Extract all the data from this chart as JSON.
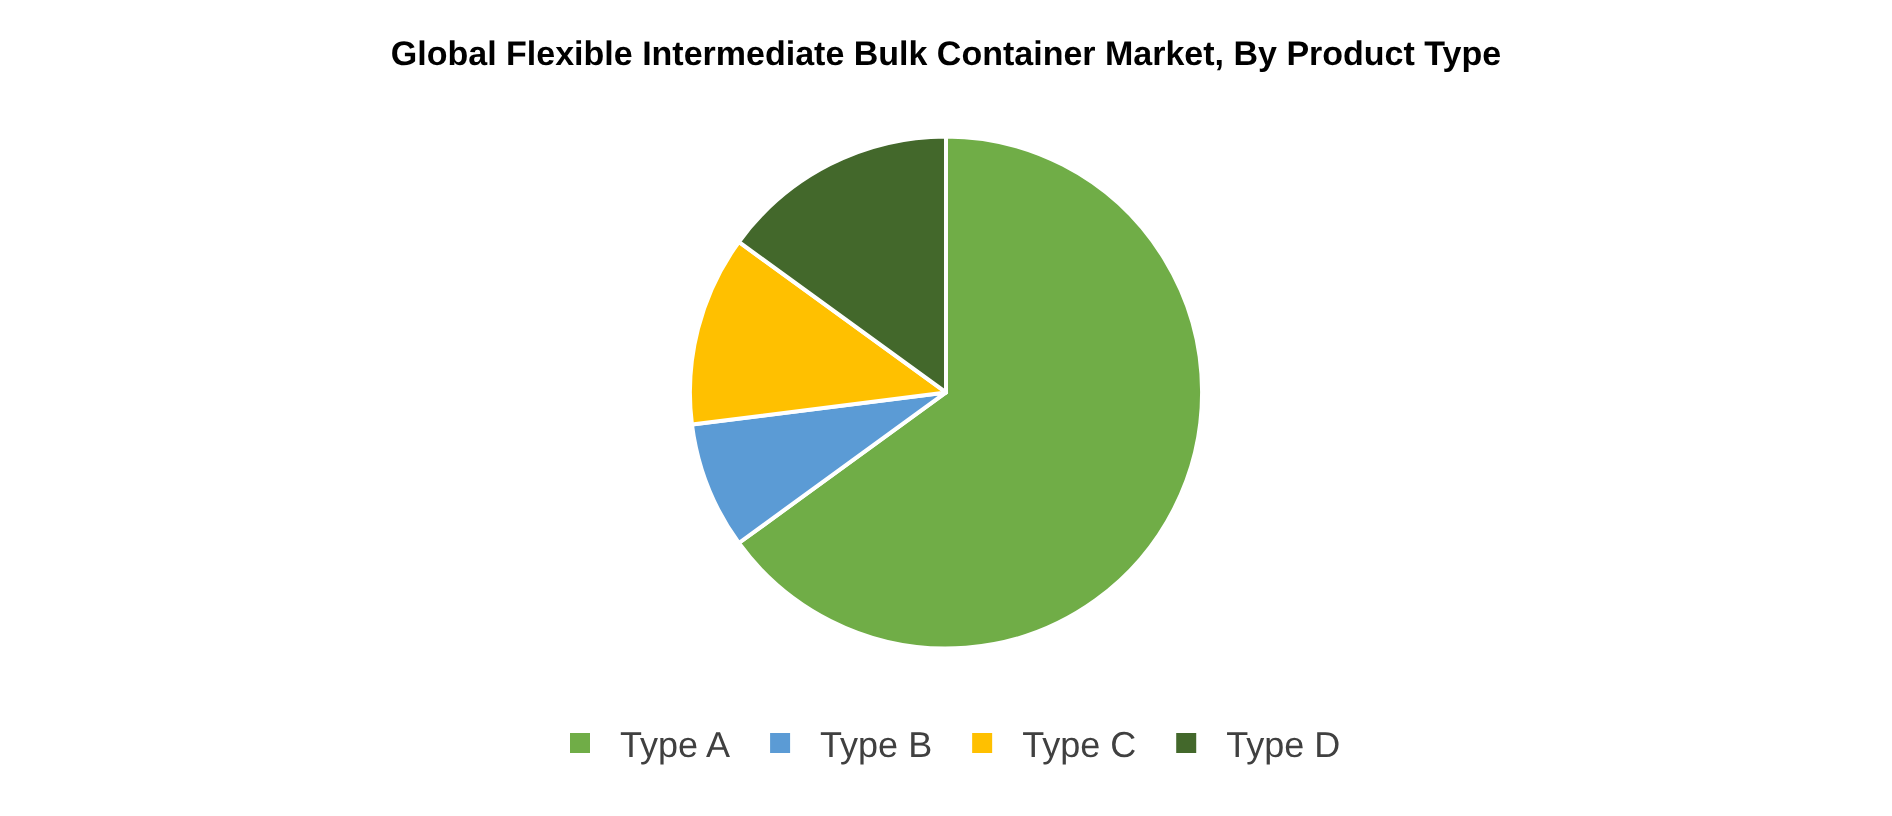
{
  "chart_data": {
    "type": "pie",
    "title": "Global Flexible Intermediate Bulk Container Market, By Product Type",
    "categories": [
      "Type A",
      "Type B",
      "Type C",
      "Type D"
    ],
    "values": [
      65,
      8,
      12,
      15
    ],
    "colors": [
      "#70ad47",
      "#5b9bd5",
      "#ffc000",
      "#43682b"
    ],
    "legend": "bottom"
  }
}
